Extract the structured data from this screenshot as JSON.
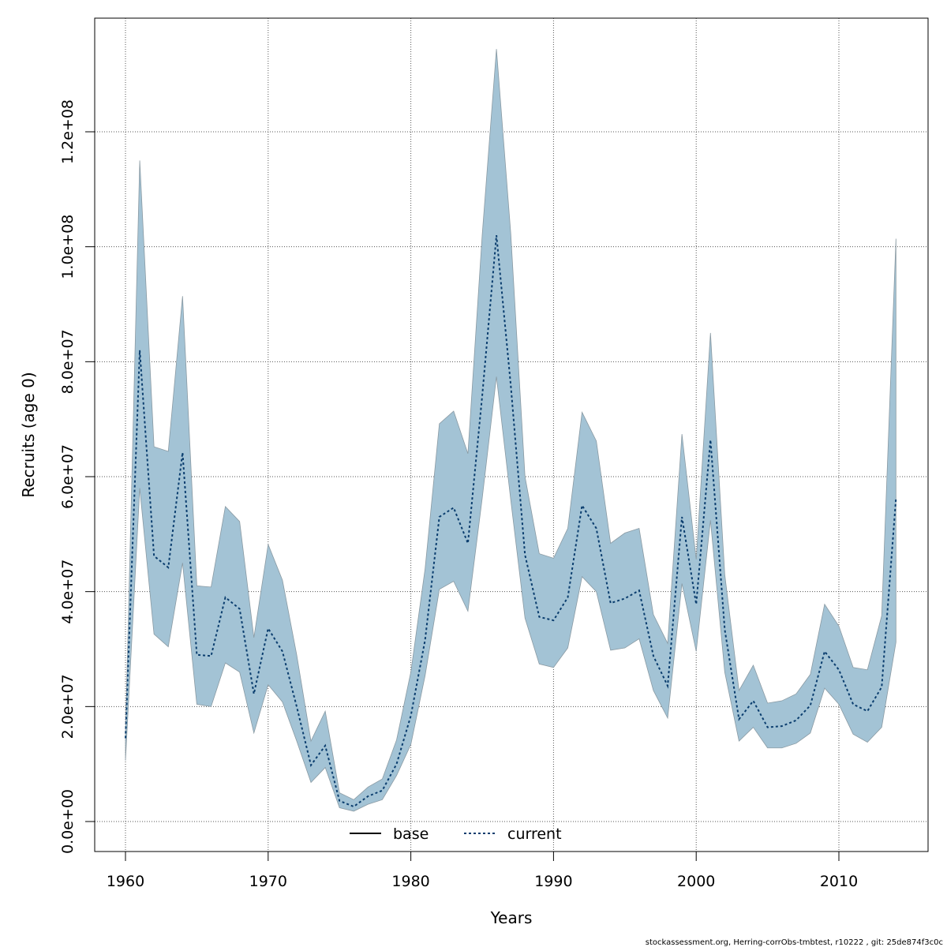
{
  "chart_data": {
    "type": "line",
    "xlabel": "Years",
    "ylabel": "Recruits (age 0)",
    "xlim": [
      1958,
      2017
    ],
    "ylim": [
      -5000000,
      140000000
    ],
    "grid": true,
    "x_ticks": [
      1960,
      1970,
      1980,
      1990,
      2000,
      2010
    ],
    "x_tick_labels": [
      "1960",
      "1970",
      "1980",
      "1990",
      "2000",
      "2010"
    ],
    "y_ticks": [
      0,
      20000000,
      40000000,
      60000000,
      80000000,
      100000000,
      120000000
    ],
    "y_tick_labels": [
      "0.0e+00",
      "2.0e+07",
      "4.0e+07",
      "6.0e+07",
      "8.0e+07",
      "1.0e+08",
      "1.2e+08"
    ],
    "legend": {
      "placement": "bottom-center",
      "entries": [
        "base",
        "current"
      ]
    },
    "colors": {
      "band": "#a3c3d5",
      "band_edge": "#8a9aa3",
      "current_line": "#0a3d6e",
      "base_line": "#000000"
    },
    "x": [
      1960,
      1961,
      1962,
      1963,
      1964,
      1965,
      1966,
      1967,
      1968,
      1969,
      1970,
      1971,
      1972,
      1973,
      1974,
      1975,
      1976,
      1977,
      1978,
      1979,
      1980,
      1981,
      1982,
      1983,
      1984,
      1985,
      1986,
      1987,
      1988,
      1989,
      1990,
      1991,
      1992,
      1993,
      1994,
      1995,
      1996,
      1997,
      1998,
      1999,
      2000,
      2001,
      2002,
      2003,
      2004,
      2005,
      2006,
      2007,
      2008,
      2009,
      2010,
      2011,
      2012,
      2013,
      2014
    ],
    "series": [
      {
        "name": "current",
        "values": [
          14500000,
          82000000,
          46200000,
          44200000,
          64200000,
          29000000,
          28800000,
          39000000,
          37000000,
          22200000,
          33600000,
          29600000,
          20000000,
          9800000,
          13200000,
          3600000,
          2600000,
          4400000,
          5400000,
          10000000,
          18400000,
          31600000,
          53000000,
          54600000,
          48400000,
          74000000,
          102000000,
          76000000,
          46400000,
          35600000,
          35000000,
          39000000,
          55000000,
          51000000,
          38000000,
          38800000,
          40200000,
          28800000,
          23600000,
          53000000,
          37800000,
          66400000,
          33400000,
          17800000,
          21000000,
          16400000,
          16600000,
          17600000,
          20200000,
          29600000,
          26400000,
          20400000,
          19200000,
          23400000,
          56200000
        ]
      }
    ],
    "band_upper": [
      15200000,
      115000000,
      65200000,
      64400000,
      91400000,
      41000000,
      40800000,
      54800000,
      52200000,
      32000000,
      48200000,
      42000000,
      29000000,
      14000000,
      19200000,
      5000000,
      3800000,
      6000000,
      7400000,
      14200000,
      26000000,
      44000000,
      69200000,
      71400000,
      64000000,
      102000000,
      134400000,
      102400000,
      60000000,
      46600000,
      45800000,
      51000000,
      71200000,
      66200000,
      48400000,
      50200000,
      51000000,
      36000000,
      31000000,
      67400000,
      45600000,
      85000000,
      43000000,
      22800000,
      27200000,
      20600000,
      21000000,
      22200000,
      25600000,
      37800000,
      34000000,
      26800000,
      26400000,
      35800000,
      101400000
    ],
    "band_lower": [
      10600000,
      58000000,
      32600000,
      30400000,
      45000000,
      20400000,
      20000000,
      27600000,
      26000000,
      15400000,
      23800000,
      20800000,
      14000000,
      6800000,
      9400000,
      2400000,
      1800000,
      3000000,
      3800000,
      8000000,
      13400000,
      25400000,
      40400000,
      41800000,
      36600000,
      56200000,
      77400000,
      56000000,
      35400000,
      27400000,
      26800000,
      30200000,
      42600000,
      40000000,
      29800000,
      30200000,
      31800000,
      22800000,
      18000000,
      41400000,
      29600000,
      52400000,
      26000000,
      14000000,
      16400000,
      12800000,
      12800000,
      13600000,
      15400000,
      23200000,
      20400000,
      15200000,
      13800000,
      16400000,
      31200000
    ]
  },
  "footer": "stockassessment.org, Herring-corrObs-tmbtest, r10222 , git: 25de874f3c0c"
}
